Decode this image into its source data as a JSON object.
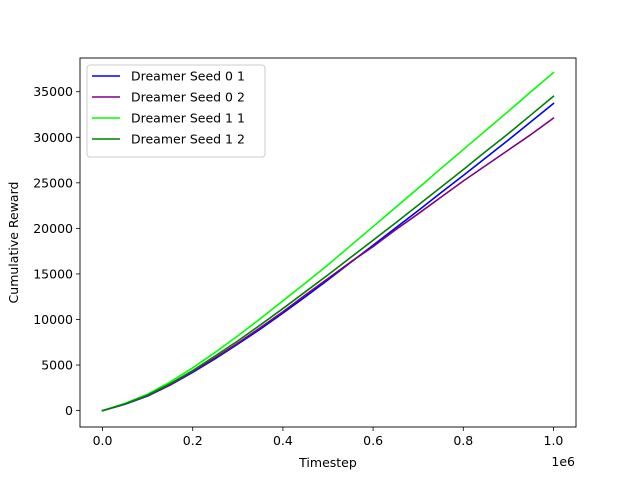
{
  "chart_data": {
    "type": "line",
    "xlabel": "Timestep",
    "ylabel": "Cumulative Reward",
    "x_offset_label": "1e6",
    "xlim": [
      -0.05,
      1.05
    ],
    "ylim": [
      -1800,
      38700
    ],
    "xticks": [
      0.0,
      0.2,
      0.4,
      0.6,
      0.8,
      1.0
    ],
    "xtick_labels": [
      "0.0",
      "0.2",
      "0.4",
      "0.6",
      "0.8",
      "1.0"
    ],
    "yticks": [
      0,
      5000,
      10000,
      15000,
      20000,
      25000,
      30000,
      35000
    ],
    "ytick_labels": [
      "0",
      "5000",
      "10000",
      "15000",
      "20000",
      "25000",
      "30000",
      "35000"
    ],
    "grid": false,
    "legend_position": "top-left",
    "x": [
      0.0,
      0.05,
      0.1,
      0.15,
      0.2,
      0.25,
      0.3,
      0.35,
      0.4,
      0.45,
      0.5,
      0.55,
      0.6,
      0.65,
      0.7,
      0.75,
      0.8,
      0.85,
      0.9,
      0.95,
      1.0
    ],
    "series": [
      {
        "name": "Dreamer Seed 0 1",
        "color": "#0000ff",
        "values": [
          0,
          700,
          1600,
          2800,
          4200,
          5700,
          7300,
          8950,
          10700,
          12500,
          14350,
          16250,
          18150,
          20050,
          21950,
          23900,
          25800,
          27750,
          29700,
          31700,
          33700
        ]
      },
      {
        "name": "Dreamer Seed 0 2",
        "color": "#800080",
        "values": [
          0,
          720,
          1650,
          2850,
          4300,
          5800,
          7400,
          9100,
          10850,
          12700,
          14500,
          16300,
          18000,
          19850,
          21600,
          23400,
          25200,
          26900,
          28600,
          30300,
          32100
        ]
      },
      {
        "name": "Dreamer Seed 1 1",
        "color": "#00ff00",
        "values": [
          0,
          790,
          1800,
          3150,
          4700,
          6400,
          8200,
          10100,
          12050,
          14000,
          16000,
          18100,
          20200,
          22300,
          24400,
          26550,
          28650,
          30750,
          32850,
          35000,
          37100
        ]
      },
      {
        "name": "Dreamer Seed 1 2",
        "color": "#008000",
        "values": [
          0,
          740,
          1700,
          2950,
          4400,
          6000,
          7650,
          9400,
          11200,
          13050,
          14900,
          16800,
          18700,
          20600,
          22550,
          24500,
          26450,
          28450,
          30400,
          32450,
          34500
        ]
      }
    ]
  }
}
